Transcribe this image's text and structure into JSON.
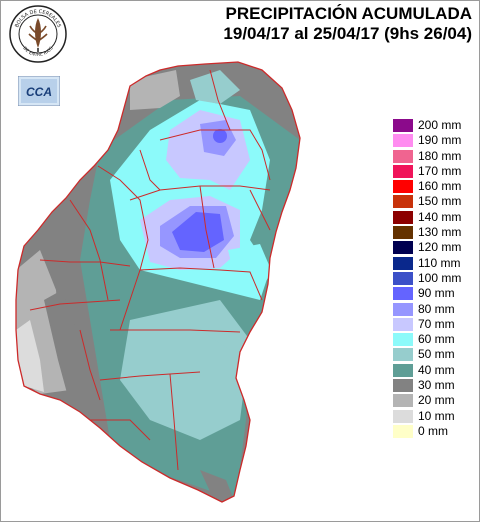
{
  "header": {
    "title_line1": "PRECIPITACIÓN ACUMULADA",
    "title_line2": "19/04/17 al 25/04/17 (9hs 26/04)"
  },
  "logo": {
    "text_top": "BOLSA DE CEREALES",
    "text_bottom": "DE ENTRE RIOS"
  },
  "cca_badge": {
    "text": "CCA"
  },
  "legend": [
    {
      "label": "200 mm",
      "color": "#8b0a8b"
    },
    {
      "label": "190 mm",
      "color": "#ff8cf0"
    },
    {
      "label": "180 mm",
      "color": "#f06490"
    },
    {
      "label": "170 mm",
      "color": "#f0145a"
    },
    {
      "label": "160 mm",
      "color": "#ff0000"
    },
    {
      "label": "150 mm",
      "color": "#c8320a"
    },
    {
      "label": "140 mm",
      "color": "#8c0000"
    },
    {
      "label": "130 mm",
      "color": "#643200"
    },
    {
      "label": "120 mm",
      "color": "#000050"
    },
    {
      "label": "110 mm",
      "color": "#0a288c"
    },
    {
      "label": "100 mm",
      "color": "#3c50c8"
    },
    {
      "label": "90 mm",
      "color": "#6464ff"
    },
    {
      "label": "80 mm",
      "color": "#9696ff"
    },
    {
      "label": "70 mm",
      "color": "#c8c8ff"
    },
    {
      "label": "60 mm",
      "color": "#8cfafa"
    },
    {
      "label": "50 mm",
      "color": "#96cdcd"
    },
    {
      "label": "40 mm",
      "color": "#5f9e96"
    },
    {
      "label": "30 mm",
      "color": "#828282"
    },
    {
      "label": "20 mm",
      "color": "#b4b4b4"
    },
    {
      "label": "10 mm",
      "color": "#dcdcdc"
    },
    {
      "label": "0 mm",
      "color": "#ffffc8"
    }
  ]
}
